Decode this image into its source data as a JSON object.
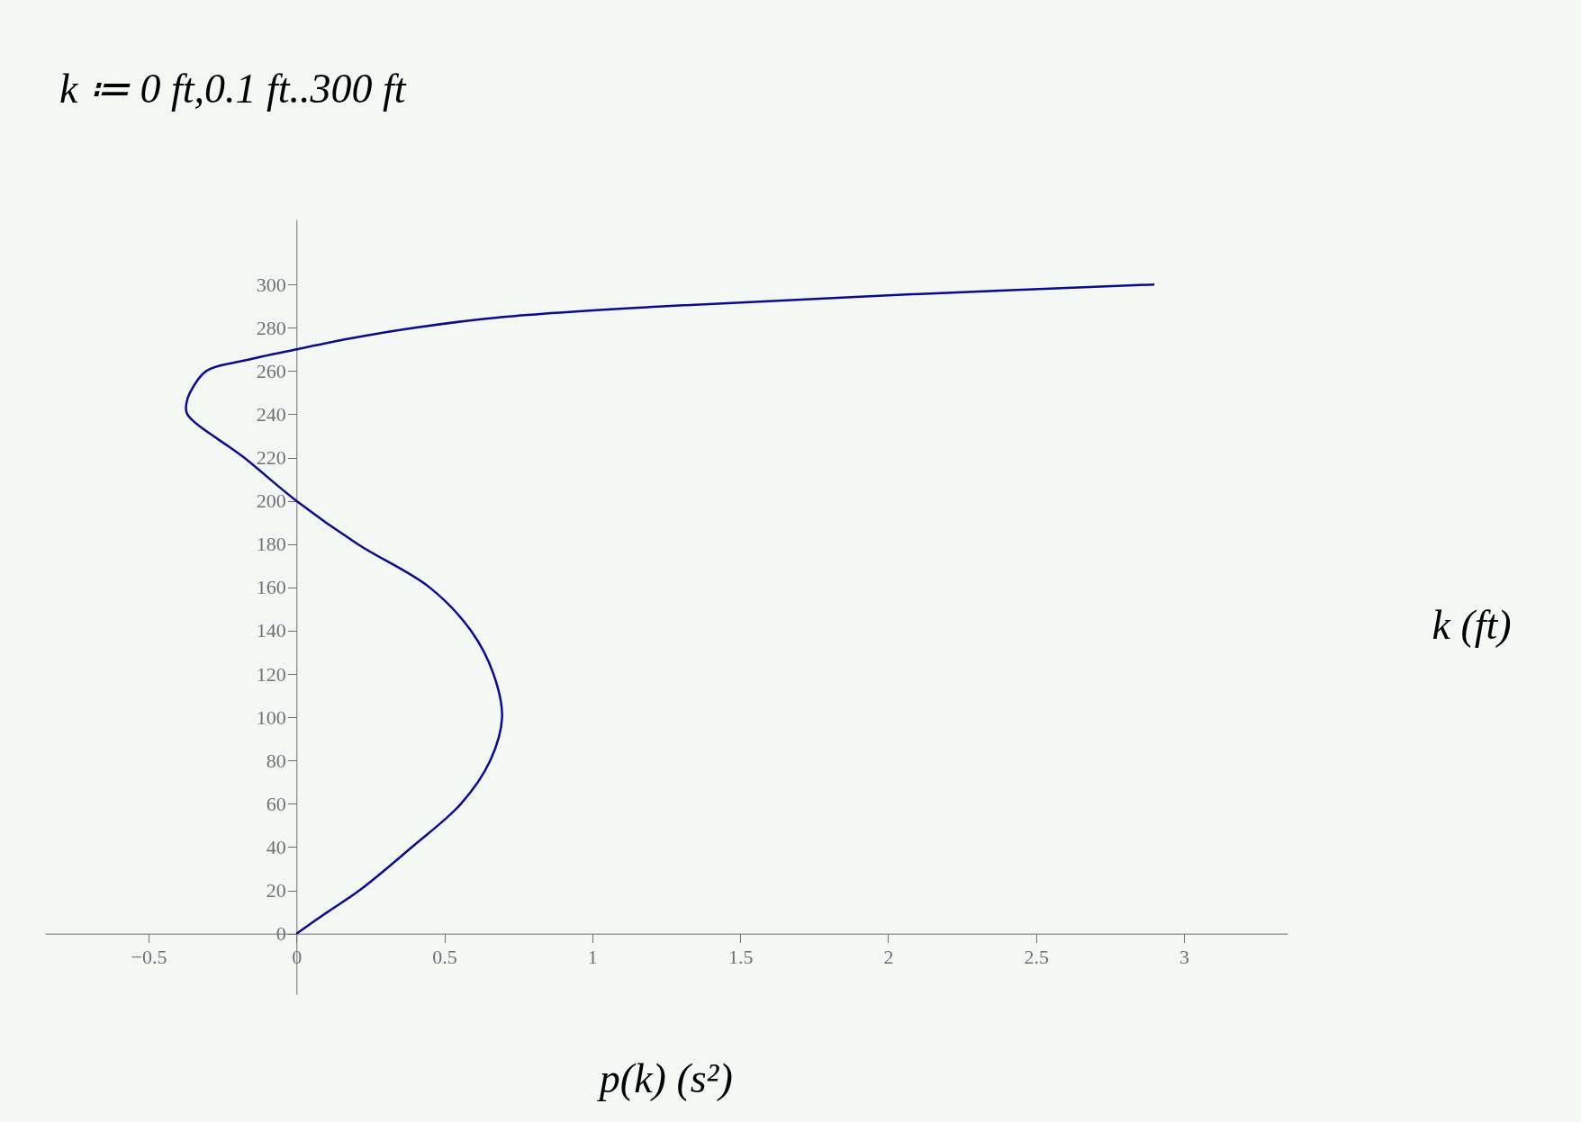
{
  "chart_data": {
    "type": "line",
    "title": "k ≔ 0 ft,0.1 ft..300 ft",
    "xlabel": "p(k)  (s²)",
    "ylabel": "k  (ft)",
    "x": [
      0,
      0.105,
      0.213,
      0.39,
      0.556,
      0.655,
      0.695,
      0.666,
      0.59,
      0.45,
      0.207,
      0,
      -0.177,
      -0.369,
      -0.372,
      -0.36,
      -0.305,
      -0.17,
      0,
      0.18,
      0.4,
      0.7,
      1.25,
      2.0,
      2.9
    ],
    "series": [
      {
        "color": "#0a0a8c",
        "values": [
          0,
          10,
          20,
          40,
          60,
          80,
          100,
          120,
          140,
          160,
          180,
          200,
          220,
          240,
          245,
          250,
          260,
          265,
          270,
          275,
          280,
          285,
          290,
          295,
          300
        ]
      }
    ],
    "xlim": [
      -0.85,
      3.35
    ],
    "ylim": [
      -28,
      330
    ],
    "xticks": [
      {
        "value": -0.5,
        "label": "−0.5"
      },
      0,
      0.5,
      1,
      1.5,
      2,
      2.5,
      3
    ],
    "yticks": [
      0,
      20,
      40,
      60,
      80,
      100,
      120,
      140,
      160,
      180,
      200,
      220,
      240,
      260,
      280,
      300
    ],
    "grid": false,
    "marker": "none",
    "line_style": "solid"
  }
}
